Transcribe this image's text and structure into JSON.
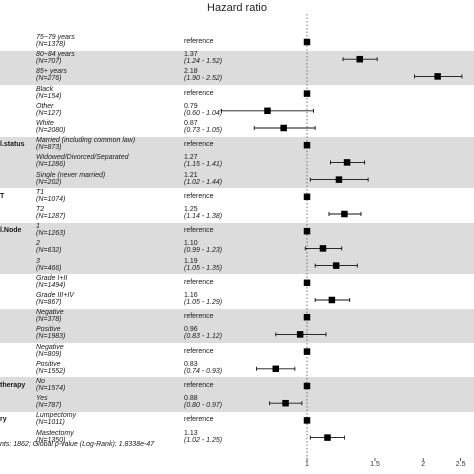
{
  "chart_data": {
    "type": "forest",
    "title": "Hazard ratio",
    "x_scale": "log",
    "xlim": [
      0.55,
      2.7
    ],
    "x_ticks": [
      "1",
      "1.5",
      "2",
      "2.5"
    ],
    "reference_line": 1,
    "footer": "nts: 1862; Global p-value (Log-Rank): 1.8338e-47",
    "rows": [
      {
        "variable": "",
        "level": "75~79 years",
        "n": "(N=1378)",
        "est_text": "reference",
        "ci_text": "",
        "hr": 1,
        "lo": null,
        "hi": null,
        "band": false
      },
      {
        "variable": "",
        "level": "80~84 years",
        "n": "(N=707)",
        "est_text": "1.37",
        "ci_text": "(1.24 - 1.52)",
        "hr": 1.37,
        "lo": 1.24,
        "hi": 1.52,
        "band": true
      },
      {
        "variable": "",
        "level": "85+ years",
        "n": "(N=276)",
        "est_text": "2.18",
        "ci_text": "(1.90 - 2.52)",
        "hr": 2.18,
        "lo": 1.9,
        "hi": 2.52,
        "band": true
      },
      {
        "variable": "",
        "level": "Black",
        "n": "(N=154)",
        "est_text": "reference",
        "ci_text": "",
        "hr": 1,
        "lo": null,
        "hi": null,
        "band": false
      },
      {
        "variable": "",
        "level": "Other",
        "n": "(N=127)",
        "est_text": "0.79",
        "ci_text": "(0.60 - 1.04)",
        "hr": 0.79,
        "lo": 0.6,
        "hi": 1.04,
        "band": false
      },
      {
        "variable": "",
        "level": "White",
        "n": "(N=2080)",
        "est_text": "0.87",
        "ci_text": "(0.73 - 1.05)",
        "hr": 0.87,
        "lo": 0.73,
        "hi": 1.05,
        "band": false
      },
      {
        "variable": "l.status",
        "level": "Married (including common law)",
        "n": "(N=873)",
        "est_text": "reference",
        "ci_text": "",
        "hr": 1,
        "lo": null,
        "hi": null,
        "band": true
      },
      {
        "variable": "",
        "level": "Widowed/Divorced/Separated",
        "n": "(N=1286)",
        "est_text": "1.27",
        "ci_text": "(1.15 - 1.41)",
        "hr": 1.27,
        "lo": 1.15,
        "hi": 1.41,
        "band": true
      },
      {
        "variable": "",
        "level": "Single (never married)",
        "n": "(N=202)",
        "est_text": "1.21",
        "ci_text": "(1.02 - 1.44)",
        "hr": 1.21,
        "lo": 1.02,
        "hi": 1.44,
        "band": true
      },
      {
        "variable": "T",
        "level": "T1",
        "n": "(N=1074)",
        "est_text": "reference",
        "ci_text": "",
        "hr": 1,
        "lo": null,
        "hi": null,
        "band": false
      },
      {
        "variable": "",
        "level": "T2",
        "n": "(N=1287)",
        "est_text": "1.25",
        "ci_text": "(1.14 - 1.38)",
        "hr": 1.25,
        "lo": 1.14,
        "hi": 1.38,
        "band": false
      },
      {
        "variable": "l.Node",
        "level": "1",
        "n": "(N=1263)",
        "est_text": "reference",
        "ci_text": "",
        "hr": 1,
        "lo": null,
        "hi": null,
        "band": true
      },
      {
        "variable": "",
        "level": "2",
        "n": "(N=632)",
        "est_text": "1.10",
        "ci_text": "(0.99 - 1.23)",
        "hr": 1.1,
        "lo": 0.99,
        "hi": 1.23,
        "band": true
      },
      {
        "variable": "",
        "level": "3",
        "n": "(N=466)",
        "est_text": "1.19",
        "ci_text": "(1.05 - 1.35)",
        "hr": 1.19,
        "lo": 1.05,
        "hi": 1.35,
        "band": true
      },
      {
        "variable": "",
        "level": "Grade I+II",
        "n": "(N=1494)",
        "est_text": "reference",
        "ci_text": "",
        "hr": 1,
        "lo": null,
        "hi": null,
        "band": false
      },
      {
        "variable": "",
        "level": "Grade III+IV",
        "n": "(N=867)",
        "est_text": "1.16",
        "ci_text": "(1.05 - 1.29)",
        "hr": 1.16,
        "lo": 1.05,
        "hi": 1.29,
        "band": false
      },
      {
        "variable": "",
        "level": "Negative",
        "n": "(N=378)",
        "est_text": "reference",
        "ci_text": "",
        "hr": 1,
        "lo": null,
        "hi": null,
        "band": true
      },
      {
        "variable": "",
        "level": "Positive",
        "n": "(N=1983)",
        "est_text": "0.96",
        "ci_text": "(0.83 - 1.12)",
        "hr": 0.96,
        "lo": 0.83,
        "hi": 1.12,
        "band": true
      },
      {
        "variable": "",
        "level": "Negative",
        "n": "(N=809)",
        "est_text": "reference",
        "ci_text": "",
        "hr": 1,
        "lo": null,
        "hi": null,
        "band": false
      },
      {
        "variable": "",
        "level": "Positive",
        "n": "(N=1552)",
        "est_text": "0.83",
        "ci_text": "(0.74 - 0.93)",
        "hr": 0.83,
        "lo": 0.74,
        "hi": 0.93,
        "band": false
      },
      {
        "variable": "therapy",
        "level": "No",
        "n": "(N=1574)",
        "est_text": "reference",
        "ci_text": "",
        "hr": 1,
        "lo": null,
        "hi": null,
        "band": true
      },
      {
        "variable": "",
        "level": "Yes",
        "n": "(N=787)",
        "est_text": "0.88",
        "ci_text": "(0.80 - 0.97)",
        "hr": 0.88,
        "lo": 0.8,
        "hi": 0.97,
        "band": true
      },
      {
        "variable": "ry",
        "level": "Lumpectomy",
        "n": "(N=1011)",
        "est_text": "reference",
        "ci_text": "",
        "hr": 1,
        "lo": null,
        "hi": null,
        "band": false
      },
      {
        "variable": "",
        "level": "Mastectomy",
        "n": "(N=1350)",
        "est_text": "1.13",
        "ci_text": "(1.02 - 1.25)",
        "hr": 1.13,
        "lo": 1.02,
        "hi": 1.25,
        "band": false
      }
    ]
  }
}
